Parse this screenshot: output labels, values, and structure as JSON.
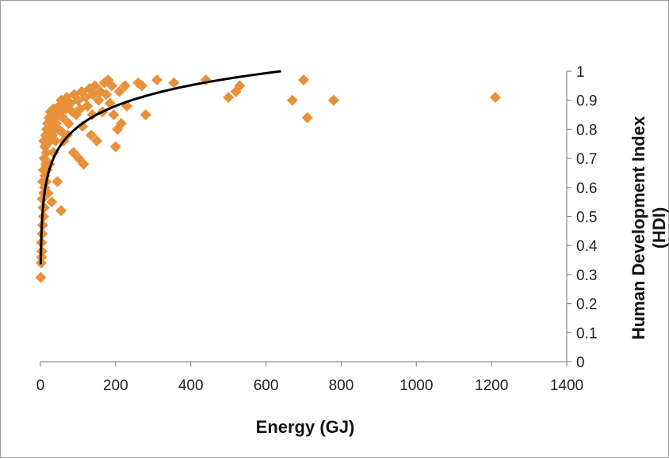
{
  "chart_data": {
    "type": "scatter",
    "title": "",
    "xlabel": "Energy (GJ)",
    "ylabel": [
      "Human Development Index",
      "(HDI)"
    ],
    "xlim": [
      0,
      1400
    ],
    "ylim": [
      0,
      1
    ],
    "x_ticks": [
      "0",
      "200",
      "400",
      "600",
      "800",
      "1000",
      "1200",
      "1400"
    ],
    "y_ticks": [
      "0",
      "0.1",
      "0.2",
      "0.3",
      "0.4",
      "0.5",
      "0.6",
      "0.7",
      "0.8",
      "0.9",
      "1"
    ],
    "y_axis_position": "right",
    "grid": false,
    "legend": "none",
    "marker_color": "#e8913a",
    "trendline_color": "#000000",
    "series": [
      {
        "points": [
          [
            1,
            0.29
          ],
          [
            2,
            0.34
          ],
          [
            3,
            0.36
          ],
          [
            4,
            0.38
          ],
          [
            3,
            0.41
          ],
          [
            5,
            0.44
          ],
          [
            6,
            0.47
          ],
          [
            8,
            0.5
          ],
          [
            7,
            0.53
          ],
          [
            5,
            0.56
          ],
          [
            9,
            0.58
          ],
          [
            11,
            0.6
          ],
          [
            6,
            0.62
          ],
          [
            12,
            0.64
          ],
          [
            8,
            0.66
          ],
          [
            14,
            0.68
          ],
          [
            10,
            0.7
          ],
          [
            16,
            0.72
          ],
          [
            12,
            0.74
          ],
          [
            18,
            0.75
          ],
          [
            9,
            0.76
          ],
          [
            20,
            0.77
          ],
          [
            14,
            0.78
          ],
          [
            22,
            0.79
          ],
          [
            17,
            0.8
          ],
          [
            25,
            0.81
          ],
          [
            19,
            0.82
          ],
          [
            28,
            0.83
          ],
          [
            23,
            0.84
          ],
          [
            30,
            0.85
          ],
          [
            26,
            0.86
          ],
          [
            34,
            0.87
          ],
          [
            29,
            0.82
          ],
          [
            36,
            0.8
          ],
          [
            32,
            0.78
          ],
          [
            40,
            0.84
          ],
          [
            38,
            0.87
          ],
          [
            45,
            0.85
          ],
          [
            42,
            0.82
          ],
          [
            50,
            0.88
          ],
          [
            48,
            0.8
          ],
          [
            55,
            0.9
          ],
          [
            52,
            0.86
          ],
          [
            60,
            0.84
          ],
          [
            58,
            0.79
          ],
          [
            65,
            0.88
          ],
          [
            62,
            0.76
          ],
          [
            70,
            0.91
          ],
          [
            68,
            0.87
          ],
          [
            75,
            0.82
          ],
          [
            72,
            0.78
          ],
          [
            80,
            0.89
          ],
          [
            85,
            0.86
          ],
          [
            88,
            0.72
          ],
          [
            90,
            0.92
          ],
          [
            95,
            0.85
          ],
          [
            100,
            0.9
          ],
          [
            102,
            0.7
          ],
          [
            105,
            0.87
          ],
          [
            110,
            0.93
          ],
          [
            112,
            0.81
          ],
          [
            115,
            0.68
          ],
          [
            120,
            0.91
          ],
          [
            125,
            0.88
          ],
          [
            130,
            0.94
          ],
          [
            135,
            0.78
          ],
          [
            138,
            0.85
          ],
          [
            140,
            0.92
          ],
          [
            145,
            0.95
          ],
          [
            150,
            0.76
          ],
          [
            155,
            0.9
          ],
          [
            160,
            0.93
          ],
          [
            165,
            0.86
          ],
          [
            170,
            0.96
          ],
          [
            175,
            0.92
          ],
          [
            180,
            0.97
          ],
          [
            185,
            0.89
          ],
          [
            190,
            0.95
          ],
          [
            195,
            0.85
          ],
          [
            200,
            0.74
          ],
          [
            205,
            0.8
          ],
          [
            210,
            0.93
          ],
          [
            215,
            0.82
          ],
          [
            225,
            0.95
          ],
          [
            230,
            0.88
          ],
          [
            260,
            0.96
          ],
          [
            270,
            0.95
          ],
          [
            280,
            0.85
          ],
          [
            310,
            0.97
          ],
          [
            355,
            0.96
          ],
          [
            440,
            0.97
          ],
          [
            500,
            0.91
          ],
          [
            520,
            0.93
          ],
          [
            530,
            0.95
          ],
          [
            670,
            0.9
          ],
          [
            700,
            0.97
          ],
          [
            710,
            0.84
          ],
          [
            780,
            0.9
          ],
          [
            1210,
            0.91
          ],
          [
            55,
            0.52
          ],
          [
            45,
            0.62
          ],
          [
            30,
            0.55
          ],
          [
            20,
            0.58
          ],
          [
            25,
            0.68
          ],
          [
            35,
            0.72
          ],
          [
            15,
            0.62
          ],
          [
            10,
            0.53
          ],
          [
            18,
            0.66
          ],
          [
            40,
            0.76
          ]
        ]
      }
    ],
    "trendline": {
      "type": "logarithmic",
      "x_range": [
        1,
        640
      ],
      "y_at_start": 0.335,
      "y_at_end": 1.0
    }
  }
}
